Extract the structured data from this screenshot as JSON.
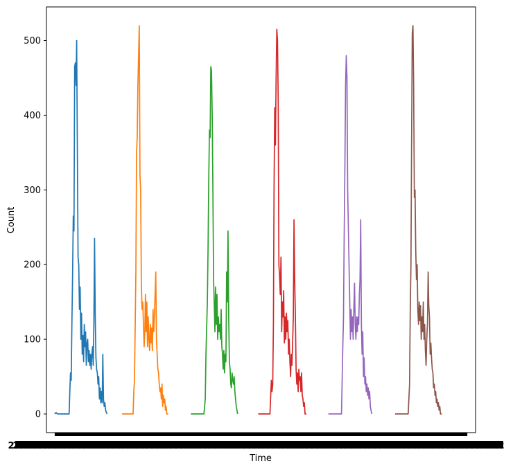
{
  "chart_data": {
    "type": "line",
    "xlabel": "Time",
    "ylabel": "Count",
    "ylim": [
      -25,
      545
    ],
    "xlim": [
      -12,
      612
    ],
    "yticks": [
      0,
      100,
      200,
      300,
      400,
      500
    ],
    "xtick_label_text": "2",
    "x_tick_labels_note": "dense overlapping date tick labels rendered as unreadable black band",
    "grid": false,
    "legend": "none",
    "series": [
      {
        "color": "#1f77b4",
        "points": [
          [
            0,
            0
          ],
          [
            2,
            2
          ],
          [
            4,
            0
          ],
          [
            10,
            0
          ],
          [
            18,
            0
          ],
          [
            21,
            0
          ],
          [
            22,
            30
          ],
          [
            23,
            55
          ],
          [
            24,
            45
          ],
          [
            25,
            120
          ],
          [
            26,
            185
          ],
          [
            27,
            265
          ],
          [
            28,
            245
          ],
          [
            29,
            465
          ],
          [
            30,
            470
          ],
          [
            31,
            440
          ],
          [
            32,
            500
          ],
          [
            33,
            350
          ],
          [
            34,
            210
          ],
          [
            35,
            200
          ],
          [
            36,
            140
          ],
          [
            37,
            170
          ],
          [
            38,
            100
          ],
          [
            39,
            135
          ],
          [
            40,
            80
          ],
          [
            41,
            105
          ],
          [
            42,
            70
          ],
          [
            43,
            120
          ],
          [
            44,
            90
          ],
          [
            45,
            110
          ],
          [
            46,
            65
          ],
          [
            47,
            95
          ],
          [
            48,
            100
          ],
          [
            49,
            70
          ],
          [
            50,
            85
          ],
          [
            51,
            65
          ],
          [
            52,
            80
          ],
          [
            53,
            60
          ],
          [
            54,
            80
          ],
          [
            55,
            90
          ],
          [
            56,
            65
          ],
          [
            57,
            120
          ],
          [
            58,
            235
          ],
          [
            59,
            130
          ],
          [
            60,
            75
          ],
          [
            61,
            60
          ],
          [
            62,
            55
          ],
          [
            63,
            40
          ],
          [
            64,
            50
          ],
          [
            65,
            20
          ],
          [
            66,
            35
          ],
          [
            67,
            15
          ],
          [
            68,
            30
          ],
          [
            69,
            15
          ],
          [
            70,
            80
          ],
          [
            71,
            20
          ],
          [
            72,
            10
          ],
          [
            73,
            15
          ],
          [
            74,
            5
          ],
          [
            76,
            0
          ]
        ]
      },
      {
        "color": "#ff7f0e",
        "points": [
          [
            98,
            0
          ],
          [
            110,
            0
          ],
          [
            114,
            0
          ],
          [
            115,
            30
          ],
          [
            116,
            45
          ],
          [
            118,
            190
          ],
          [
            119,
            350
          ],
          [
            120,
            370
          ],
          [
            121,
            440
          ],
          [
            122,
            480
          ],
          [
            123,
            520
          ],
          [
            124,
            320
          ],
          [
            125,
            300
          ],
          [
            126,
            175
          ],
          [
            127,
            140
          ],
          [
            128,
            150
          ],
          [
            129,
            120
          ],
          [
            130,
            90
          ],
          [
            131,
            110
          ],
          [
            132,
            160
          ],
          [
            133,
            110
          ],
          [
            134,
            150
          ],
          [
            135,
            90
          ],
          [
            136,
            130
          ],
          [
            137,
            100
          ],
          [
            138,
            85
          ],
          [
            139,
            120
          ],
          [
            140,
            95
          ],
          [
            141,
            115
          ],
          [
            142,
            85
          ],
          [
            143,
            140
          ],
          [
            144,
            110
          ],
          [
            145,
            130
          ],
          [
            146,
            160
          ],
          [
            147,
            190
          ],
          [
            148,
            100
          ],
          [
            149,
            80
          ],
          [
            150,
            60
          ],
          [
            151,
            55
          ],
          [
            152,
            40
          ],
          [
            153,
            30
          ],
          [
            154,
            35
          ],
          [
            155,
            20
          ],
          [
            156,
            40
          ],
          [
            157,
            10
          ],
          [
            158,
            25
          ],
          [
            159,
            15
          ],
          [
            160,
            20
          ],
          [
            161,
            5
          ],
          [
            162,
            10
          ],
          [
            163,
            0
          ],
          [
            165,
            0
          ]
        ]
      },
      {
        "color": "#2ca02c",
        "points": [
          [
            198,
            0
          ],
          [
            215,
            0
          ],
          [
            217,
            0
          ],
          [
            219,
            20
          ],
          [
            220,
            80
          ],
          [
            222,
            150
          ],
          [
            223,
            220
          ],
          [
            224,
            310
          ],
          [
            225,
            380
          ],
          [
            226,
            370
          ],
          [
            227,
            465
          ],
          [
            228,
            460
          ],
          [
            229,
            400
          ],
          [
            230,
            300
          ],
          [
            231,
            180
          ],
          [
            232,
            150
          ],
          [
            233,
            110
          ],
          [
            234,
            170
          ],
          [
            235,
            120
          ],
          [
            236,
            160
          ],
          [
            237,
            100
          ],
          [
            238,
            130
          ],
          [
            239,
            110
          ],
          [
            240,
            120
          ],
          [
            241,
            100
          ],
          [
            242,
            140
          ],
          [
            243,
            90
          ],
          [
            244,
            80
          ],
          [
            245,
            60
          ],
          [
            246,
            85
          ],
          [
            247,
            55
          ],
          [
            248,
            80
          ],
          [
            249,
            70
          ],
          [
            250,
            190
          ],
          [
            251,
            150
          ],
          [
            252,
            245
          ],
          [
            253,
            130
          ],
          [
            254,
            70
          ],
          [
            255,
            60
          ],
          [
            256,
            40
          ],
          [
            257,
            35
          ],
          [
            258,
            55
          ],
          [
            259,
            45
          ],
          [
            260,
            40
          ],
          [
            261,
            50
          ],
          [
            262,
            30
          ],
          [
            263,
            20
          ],
          [
            264,
            10
          ],
          [
            266,
            0
          ]
        ]
      },
      {
        "color": "#d62728",
        "points": [
          [
            296,
            0
          ],
          [
            310,
            0
          ],
          [
            313,
            0
          ],
          [
            315,
            45
          ],
          [
            316,
            30
          ],
          [
            317,
            40
          ],
          [
            318,
            120
          ],
          [
            319,
            300
          ],
          [
            320,
            410
          ],
          [
            321,
            360
          ],
          [
            322,
            450
          ],
          [
            323,
            515
          ],
          [
            324,
            500
          ],
          [
            325,
            420
          ],
          [
            326,
            200
          ],
          [
            327,
            185
          ],
          [
            328,
            160
          ],
          [
            329,
            210
          ],
          [
            330,
            110
          ],
          [
            331,
            150
          ],
          [
            332,
            130
          ],
          [
            333,
            165
          ],
          [
            334,
            95
          ],
          [
            335,
            130
          ],
          [
            336,
            100
          ],
          [
            337,
            135
          ],
          [
            338,
            110
          ],
          [
            339,
            125
          ],
          [
            340,
            80
          ],
          [
            341,
            100
          ],
          [
            342,
            70
          ],
          [
            343,
            50
          ],
          [
            344,
            80
          ],
          [
            345,
            65
          ],
          [
            346,
            95
          ],
          [
            347,
            130
          ],
          [
            348,
            260
          ],
          [
            349,
            180
          ],
          [
            350,
            130
          ],
          [
            351,
            60
          ],
          [
            352,
            40
          ],
          [
            353,
            55
          ],
          [
            354,
            30
          ],
          [
            355,
            60
          ],
          [
            356,
            45
          ],
          [
            357,
            50
          ],
          [
            358,
            30
          ],
          [
            359,
            55
          ],
          [
            360,
            25
          ],
          [
            361,
            20
          ],
          [
            362,
            10
          ],
          [
            363,
            15
          ],
          [
            364,
            0
          ],
          [
            366,
            0
          ]
        ]
      },
      {
        "color": "#9467bd",
        "points": [
          [
            398,
            0
          ],
          [
            415,
            0
          ],
          [
            417,
            0
          ],
          [
            419,
            90
          ],
          [
            420,
            130
          ],
          [
            421,
            240
          ],
          [
            422,
            330
          ],
          [
            423,
            440
          ],
          [
            424,
            480
          ],
          [
            425,
            450
          ],
          [
            426,
            300
          ],
          [
            427,
            250
          ],
          [
            428,
            200
          ],
          [
            429,
            150
          ],
          [
            430,
            100
          ],
          [
            431,
            140
          ],
          [
            432,
            110
          ],
          [
            433,
            130
          ],
          [
            434,
            100
          ],
          [
            435,
            140
          ],
          [
            436,
            175
          ],
          [
            437,
            120
          ],
          [
            438,
            100
          ],
          [
            439,
            130
          ],
          [
            440,
            110
          ],
          [
            441,
            130
          ],
          [
            442,
            120
          ],
          [
            443,
            160
          ],
          [
            444,
            180
          ],
          [
            445,
            260
          ],
          [
            446,
            120
          ],
          [
            447,
            80
          ],
          [
            448,
            110
          ],
          [
            449,
            50
          ],
          [
            450,
            75
          ],
          [
            451,
            40
          ],
          [
            452,
            50
          ],
          [
            453,
            30
          ],
          [
            454,
            40
          ],
          [
            455,
            25
          ],
          [
            456,
            35
          ],
          [
            457,
            20
          ],
          [
            458,
            30
          ],
          [
            459,
            10
          ],
          [
            461,
            0
          ]
        ]
      },
      {
        "color": "#8c564b",
        "points": [
          [
            495,
            0
          ],
          [
            512,
            0
          ],
          [
            514,
            0
          ],
          [
            516,
            40
          ],
          [
            517,
            140
          ],
          [
            518,
            200
          ],
          [
            519,
            360
          ],
          [
            520,
            510
          ],
          [
            521,
            520
          ],
          [
            522,
            440
          ],
          [
            523,
            290
          ],
          [
            524,
            300
          ],
          [
            525,
            220
          ],
          [
            526,
            180
          ],
          [
            527,
            200
          ],
          [
            528,
            140
          ],
          [
            529,
            120
          ],
          [
            530,
            150
          ],
          [
            531,
            125
          ],
          [
            532,
            145
          ],
          [
            533,
            100
          ],
          [
            534,
            130
          ],
          [
            535,
            110
          ],
          [
            536,
            150
          ],
          [
            537,
            100
          ],
          [
            538,
            120
          ],
          [
            539,
            85
          ],
          [
            540,
            65
          ],
          [
            541,
            100
          ],
          [
            542,
            120
          ],
          [
            543,
            190
          ],
          [
            544,
            145
          ],
          [
            545,
            130
          ],
          [
            546,
            80
          ],
          [
            547,
            95
          ],
          [
            548,
            75
          ],
          [
            549,
            60
          ],
          [
            550,
            55
          ],
          [
            551,
            35
          ],
          [
            552,
            40
          ],
          [
            553,
            25
          ],
          [
            554,
            30
          ],
          [
            555,
            15
          ],
          [
            556,
            20
          ],
          [
            557,
            10
          ],
          [
            558,
            15
          ],
          [
            559,
            5
          ],
          [
            560,
            10
          ],
          [
            561,
            0
          ],
          [
            563,
            0
          ]
        ]
      }
    ]
  }
}
